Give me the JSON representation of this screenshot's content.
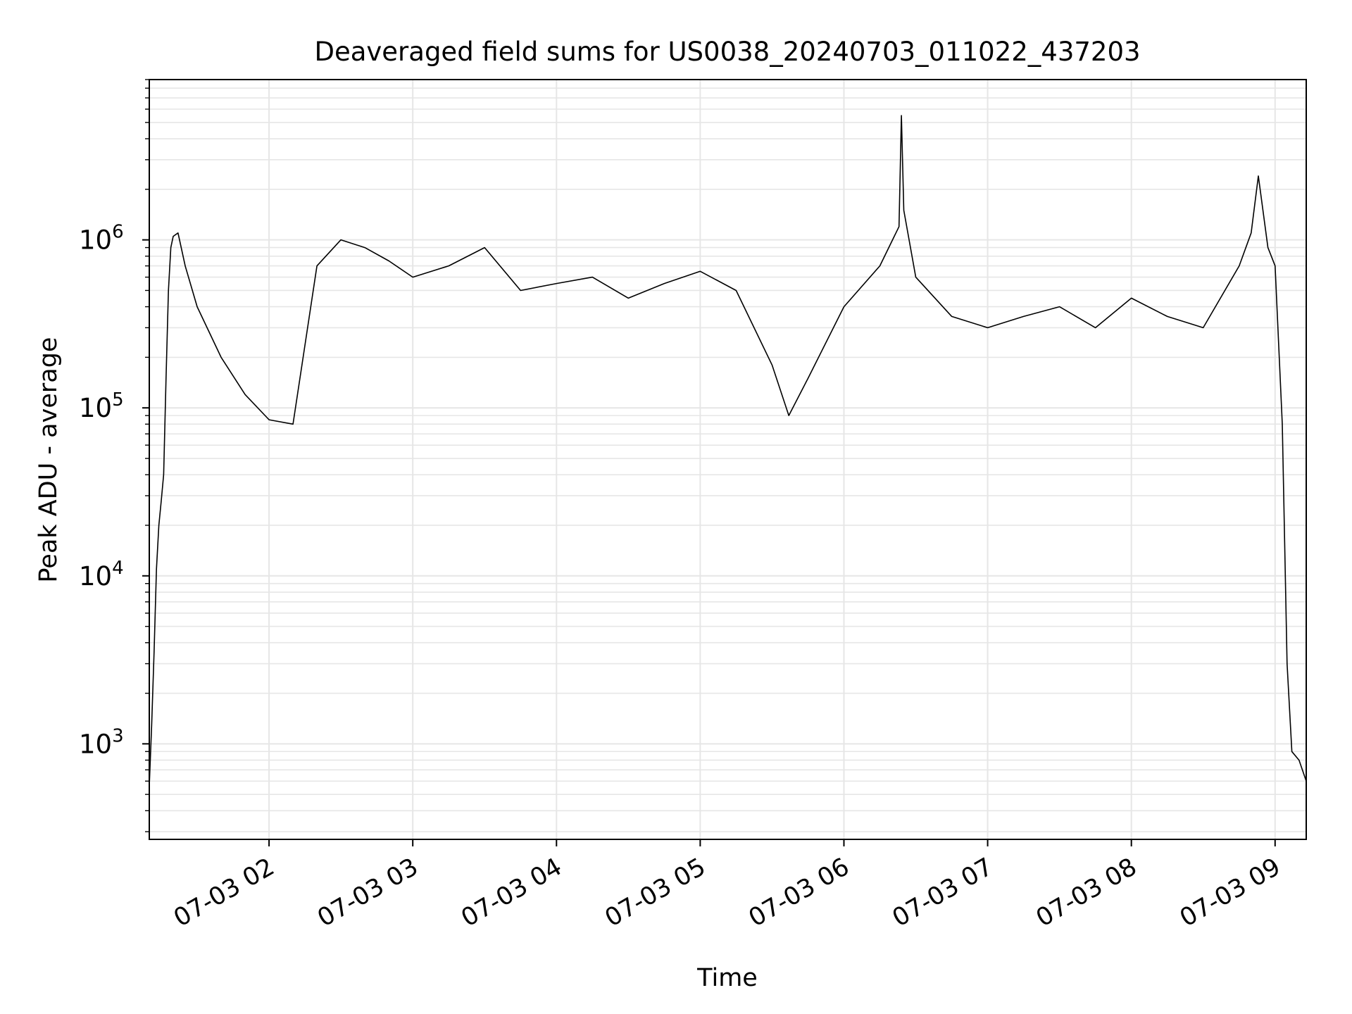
{
  "chart_data": {
    "type": "line",
    "title": "Deaveraged field sums for US0038_20240703_011022_437203",
    "xlabel": "Time",
    "ylabel": "Peak ADU - average",
    "x_axis": {
      "kind": "datetime",
      "range": [
        "2024-07-03 01:10",
        "2024-07-03 09:13"
      ],
      "tick_labels": [
        "07-03 02",
        "07-03 03",
        "07-03 04",
        "07-03 05",
        "07-03 06",
        "07-03 07",
        "07-03 08",
        "07-03 09"
      ],
      "tick_label_rotation": 30
    },
    "y_axis": {
      "scale": "log",
      "range": [
        270,
        9000000
      ],
      "tick_labels": [
        {
          "base": "10",
          "exp": "3",
          "value": 1000
        },
        {
          "base": "10",
          "exp": "4",
          "value": 10000
        },
        {
          "base": "10",
          "exp": "5",
          "value": 100000
        },
        {
          "base": "10",
          "exp": "6",
          "value": 1000000
        }
      ]
    },
    "grid": true,
    "grid_minor": true,
    "series": [
      {
        "color": "#000000",
        "x": [
          "2024-07-03 01:10",
          "2024-07-03 01:11",
          "2024-07-03 01:12",
          "2024-07-03 01:13",
          "2024-07-03 01:14",
          "2024-07-03 01:15",
          "2024-07-03 01:16",
          "2024-07-03 01:17",
          "2024-07-03 01:18",
          "2024-07-03 01:19",
          "2024-07-03 01:20",
          "2024-07-03 01:22",
          "2024-07-03 01:25",
          "2024-07-03 01:30",
          "2024-07-03 01:40",
          "2024-07-03 01:50",
          "2024-07-03 02:00",
          "2024-07-03 02:10",
          "2024-07-03 02:20",
          "2024-07-03 02:30",
          "2024-07-03 02:40",
          "2024-07-03 02:50",
          "2024-07-03 03:00",
          "2024-07-03 03:15",
          "2024-07-03 03:30",
          "2024-07-03 03:45",
          "2024-07-03 04:00",
          "2024-07-03 04:15",
          "2024-07-03 04:30",
          "2024-07-03 04:45",
          "2024-07-03 05:00",
          "2024-07-03 05:15",
          "2024-07-03 05:30",
          "2024-07-03 05:37",
          "2024-07-03 05:45",
          "2024-07-03 06:00",
          "2024-07-03 06:15",
          "2024-07-03 06:23",
          "2024-07-03 06:24",
          "2024-07-03 06:25",
          "2024-07-03 06:30",
          "2024-07-03 06:45",
          "2024-07-03 07:00",
          "2024-07-03 07:15",
          "2024-07-03 07:30",
          "2024-07-03 07:45",
          "2024-07-03 08:00",
          "2024-07-03 08:15",
          "2024-07-03 08:30",
          "2024-07-03 08:45",
          "2024-07-03 08:50",
          "2024-07-03 08:53",
          "2024-07-03 08:57",
          "2024-07-03 09:00",
          "2024-07-03 09:03",
          "2024-07-03 09:05",
          "2024-07-03 09:07",
          "2024-07-03 09:10",
          "2024-07-03 09:13"
        ],
        "y": [
          560,
          1300,
          3500,
          11000,
          20000,
          28000,
          40000,
          150000,
          500000,
          900000,
          1050000,
          1100000,
          700000,
          400000,
          200000,
          120000,
          85000,
          80000,
          700000,
          1000000,
          900000,
          750000,
          600000,
          700000,
          900000,
          500000,
          550000,
          600000,
          450000,
          550000,
          650000,
          500000,
          180000,
          90000,
          150000,
          400000,
          700000,
          1200000,
          5500000,
          1500000,
          600000,
          350000,
          300000,
          350000,
          400000,
          300000,
          450000,
          350000,
          300000,
          700000,
          1100000,
          2400000,
          900000,
          700000,
          80000,
          3000,
          900,
          800,
          600
        ]
      }
    ]
  }
}
